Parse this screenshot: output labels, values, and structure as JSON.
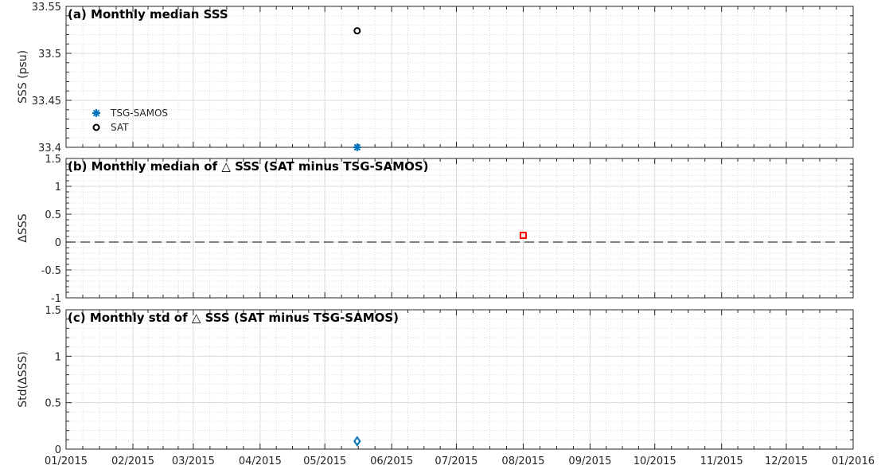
{
  "chart_data": [
    {
      "type": "scatter",
      "title": "(a) Monthly median SSS",
      "ylabel": "SSS (psu)",
      "ylim": [
        33.4,
        33.55
      ],
      "yticks": [
        "33.4",
        "33.45",
        "33.5",
        "33.55"
      ],
      "xlim": [
        "2015-01-01",
        "2016-01-01"
      ],
      "grid": true,
      "legend": {
        "placement": "lower-left",
        "entries": [
          "TSG-SAMOS",
          "SAT"
        ]
      },
      "series": [
        {
          "name": "TSG-SAMOS",
          "marker": "asterisk",
          "color": "#0072BD",
          "x": [
            "2015-05-16"
          ],
          "y": [
            33.4
          ]
        },
        {
          "name": "SAT",
          "marker": "circle",
          "color": "#000000",
          "x": [
            "2015-05-16"
          ],
          "y": [
            33.524
          ]
        }
      ]
    },
    {
      "type": "scatter",
      "title": "(b) Monthly median of △ SSS (SAT minus TSG-SAMOS)",
      "ylabel": "ΔSSS",
      "ylim": [
        -1,
        1.5
      ],
      "yticks": [
        "-1",
        "-0.5",
        "0",
        "0.5",
        "1",
        "1.5"
      ],
      "xlim": [
        "2015-01-01",
        "2016-01-01"
      ],
      "grid": true,
      "reference_line": {
        "y": 0,
        "style": "dashed"
      },
      "series": [
        {
          "marker": "square",
          "color": "#FF0000",
          "x": [
            "2015-08-01"
          ],
          "y": [
            0.12
          ]
        }
      ]
    },
    {
      "type": "scatter",
      "title": "(c) Monthly std of △ SSS (SAT minus TSG-SAMOS)",
      "ylabel": "Std(ΔSSS)",
      "ylim": [
        0,
        1.5
      ],
      "yticks": [
        "0",
        "0.5",
        "1",
        "1.5"
      ],
      "xlim": [
        "2015-01-01",
        "2016-01-01"
      ],
      "xticks": [
        "01/2015",
        "02/2015",
        "03/2015",
        "04/2015",
        "05/2015",
        "06/2015",
        "07/2015",
        "08/2015",
        "09/2015",
        "10/2015",
        "11/2015",
        "12/2015",
        "01/2016"
      ],
      "grid": true,
      "series": [
        {
          "marker": "diamond",
          "color": "#0072BD",
          "x": [
            "2015-05-16"
          ],
          "y": [
            0.085
          ]
        }
      ]
    }
  ]
}
